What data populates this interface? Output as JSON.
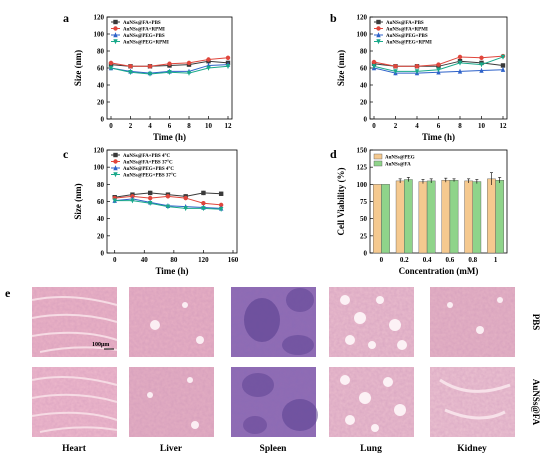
{
  "panels": {
    "a": {
      "letter": "a",
      "chart_data": {
        "type": "line",
        "xlabel": "Time (h)",
        "ylabel": "Size (nm)",
        "xlim": [
          0,
          12
        ],
        "ylim": [
          0,
          120
        ],
        "xticks": [
          0,
          2,
          4,
          6,
          8,
          10,
          12
        ],
        "yticks": [
          0,
          20,
          40,
          60,
          80,
          100,
          120
        ],
        "legend": "top-left",
        "series": [
          {
            "name": "AuNSs@FA+PBS",
            "color": "#3a3a3a",
            "x": [
              0,
              2,
              4,
              6,
              8,
              10,
              12
            ],
            "y": [
              64,
              62,
              62,
              63,
              64,
              68,
              66
            ]
          },
          {
            "name": "AuNSs@FA+RPMI",
            "color": "#e0463c",
            "x": [
              0,
              2,
              4,
              6,
              8,
              10,
              12
            ],
            "y": [
              66,
              62,
              62,
              65,
              66,
              70,
              72
            ]
          },
          {
            "name": "AuNSs@PEG+PBS",
            "color": "#2e62c9",
            "x": [
              0,
              2,
              4,
              6,
              8,
              10,
              12
            ],
            "y": [
              60,
              56,
              54,
              56,
              56,
              63,
              64
            ]
          },
          {
            "name": "AuNSs@PEG+RPMI",
            "color": "#19a98a",
            "x": [
              0,
              2,
              4,
              6,
              8,
              10,
              12
            ],
            "y": [
              60,
              55,
              53,
              55,
              54,
              60,
              62
            ]
          }
        ]
      }
    },
    "b": {
      "letter": "b",
      "chart_data": {
        "type": "line",
        "xlabel": "Time (h)",
        "ylabel": "Size (nm)",
        "xlim": [
          0,
          12
        ],
        "ylim": [
          0,
          120
        ],
        "xticks": [
          0,
          2,
          4,
          6,
          8,
          10,
          12
        ],
        "yticks": [
          0,
          20,
          40,
          60,
          80,
          100,
          120
        ],
        "legend": "top-left",
        "series": [
          {
            "name": "AuNSs@FA+PBS",
            "color": "#3a3a3a",
            "x": [
              0,
              2,
              4,
              6,
              8,
              10,
              12
            ],
            "y": [
              65,
              62,
              62,
              62,
              68,
              66,
              63
            ]
          },
          {
            "name": "AuNSs@FA+RPMI",
            "color": "#e0463c",
            "x": [
              0,
              2,
              4,
              6,
              8,
              10,
              12
            ],
            "y": [
              67,
              62,
              62,
              64,
              73,
              72,
              74
            ]
          },
          {
            "name": "AuNSs@PEG+PBS",
            "color": "#2e62c9",
            "x": [
              0,
              2,
              4,
              6,
              8,
              10,
              12
            ],
            "y": [
              60,
              54,
              54,
              55,
              56,
              57,
              58
            ]
          },
          {
            "name": "AuNSs@PEG+RPMI",
            "color": "#19a98a",
            "x": [
              0,
              2,
              4,
              6,
              8,
              10,
              12
            ],
            "y": [
              62,
              56,
              56,
              58,
              66,
              64,
              73
            ]
          }
        ]
      }
    },
    "c": {
      "letter": "c",
      "chart_data": {
        "type": "line",
        "xlabel": "Time (h)",
        "ylabel": "Size (nm)",
        "xlim": [
          -5,
          160
        ],
        "ylim": [
          0,
          120
        ],
        "xticks": [
          0,
          40,
          80,
          120,
          160
        ],
        "yticks": [
          0,
          20,
          40,
          60,
          80,
          100,
          120
        ],
        "legend": "top-left",
        "series": [
          {
            "name": "AuNSs@FA+PBS 4°C",
            "color": "#3a3a3a",
            "x": [
              0,
              24,
              48,
              72,
              96,
              120,
              144
            ],
            "y": [
              65,
              68,
              70,
              68,
              66,
              70,
              69
            ]
          },
          {
            "name": "AuNSs@FA+PBS 37°C",
            "color": "#e0463c",
            "x": [
              0,
              24,
              48,
              72,
              96,
              120,
              144
            ],
            "y": [
              64,
              66,
              64,
              66,
              64,
              58,
              56
            ]
          },
          {
            "name": "AuNSs@PEG+PBS 4°C",
            "color": "#2e62c9",
            "x": [
              0,
              24,
              48,
              72,
              96,
              120,
              144
            ],
            "y": [
              61,
              63,
              59,
              55,
              54,
              53,
              52
            ]
          },
          {
            "name": "AuNSs@PEG+PBS 37°C",
            "color": "#19a98a",
            "x": [
              0,
              24,
              48,
              72,
              96,
              120,
              144
            ],
            "y": [
              61,
              61,
              58,
              54,
              52,
              52,
              51
            ]
          }
        ]
      }
    },
    "d": {
      "letter": "d",
      "chart_data": {
        "type": "bar",
        "xlabel": "Concentration (mM)",
        "ylabel": "Cell Viability (%)",
        "categories": [
          "0",
          "0.2",
          "0.4",
          "0.6",
          "0.8",
          "1"
        ],
        "ylim": [
          0,
          150
        ],
        "yticks": [
          0,
          25,
          50,
          75,
          100,
          125,
          150
        ],
        "legend": "top-left",
        "series": [
          {
            "name": "AuNSs@PEG",
            "color": "#f5c98f",
            "values": [
              100,
              105,
              104,
              106,
              105,
              108
            ],
            "errors": [
              0,
              3,
              3,
              3,
              3,
              9
            ]
          },
          {
            "name": "AuNSs@FA",
            "color": "#8fd48a",
            "values": [
              100,
              107,
              105,
              106,
              104,
              106
            ],
            "errors": [
              0,
              3,
              3,
              2,
              3,
              4
            ]
          }
        ]
      }
    }
  },
  "histology": {
    "letter": "e",
    "organs": [
      "Heart",
      "Liver",
      "Spleen",
      "Lung",
      "Kidney"
    ],
    "rows": [
      "PBS",
      "AuNSs@FA"
    ],
    "scale_bar": "100μm"
  },
  "colors": {
    "tissue_pink": "#e6a9c0",
    "spleen_purple": "#7a5aa8"
  }
}
